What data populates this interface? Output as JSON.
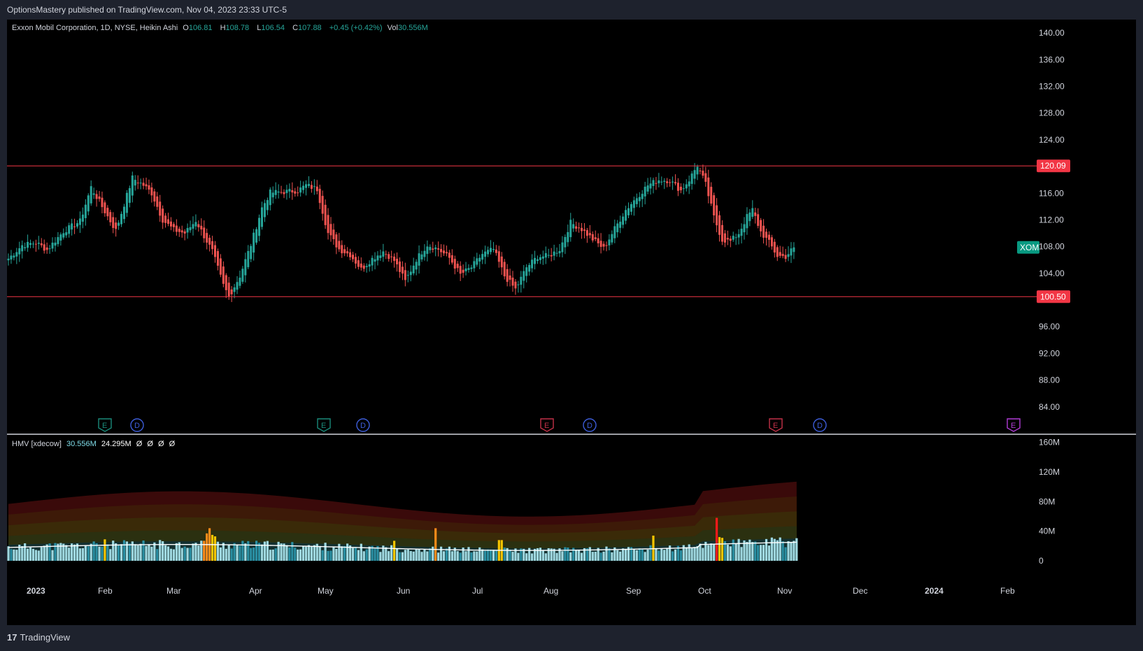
{
  "header": {
    "publisher_text": "OptionsMastery published on TradingView.com, Nov 04, 2023 23:33 UTC-5"
  },
  "legend": {
    "symbol_line": "Exxon Mobil Corporation, 1D, NYSE, Heikin Ashi",
    "o_label": "O",
    "o_value": "106.81",
    "h_label": "H",
    "h_value": "108.78",
    "l_label": "L",
    "l_value": "106.54",
    "c_label": "C",
    "c_value": "107.88",
    "change": "+0.45 (+0.42%)",
    "vol_label": "Vol",
    "vol_value": "30.556M"
  },
  "indicator": {
    "name": "HMV [xdecow]",
    "value1": "30.556M",
    "value2": "24.295M",
    "extras": [
      "Ø",
      "Ø",
      "Ø",
      "Ø"
    ]
  },
  "footer": {
    "logo_glyph": "17",
    "logo_text": "TradingView"
  },
  "colors": {
    "up": "#26a69a",
    "down": "#ef5350",
    "level_line": "#f23645",
    "symbol_badge": "#089981",
    "volume_normal": "#9fd8e0",
    "volume_dark": "#2a8fa3",
    "volume_yellow": "#f7c600",
    "volume_orange": "#ff8c1a",
    "volume_red": "#ff1a1a",
    "earnings_green": "#1a8a7a",
    "earnings_red": "#c23148",
    "earnings_purple": "#b03cd6",
    "dividend": "#3d5dd9"
  },
  "chart_data": [
    {
      "type": "candlestick",
      "title": "Exxon Mobil Corporation, 1D, NYSE, Heikin Ashi",
      "symbol": "XOM",
      "last_price": 107.88,
      "ylim": [
        80,
        142
      ],
      "y_ticks": [
        "140.00",
        "136.00",
        "132.00",
        "128.00",
        "124.00",
        "120.00",
        "116.00",
        "112.00",
        "108.00",
        "104.00",
        "100.00",
        "96.00",
        "92.00",
        "88.00",
        "84.00"
      ],
      "x_ticks": [
        "2023",
        "Feb",
        "Mar",
        "Apr",
        "May",
        "Jun",
        "Jul",
        "Aug",
        "Sep",
        "Oct",
        "Nov",
        "Dec",
        "2024",
        "Feb"
      ],
      "horizontal_levels": [
        {
          "value": 120.09,
          "label": "120.09"
        },
        {
          "value": 100.5,
          "label": "100.50"
        }
      ],
      "anchor_closes": [
        [
          0,
          106.2
        ],
        [
          5,
          108.2
        ],
        [
          10,
          108.6
        ],
        [
          14,
          107.5
        ],
        [
          20,
          110.3
        ],
        [
          26,
          111.8
        ],
        [
          30,
          116.9
        ],
        [
          36,
          112.5
        ],
        [
          39,
          110.4
        ],
        [
          45,
          118.3
        ],
        [
          49,
          117.2
        ],
        [
          52,
          116.0
        ],
        [
          56,
          112.0
        ],
        [
          60,
          110.5
        ],
        [
          64,
          110.0
        ],
        [
          68,
          111.9
        ],
        [
          72,
          108.8
        ],
        [
          74,
          107.3
        ],
        [
          78,
          102.2
        ],
        [
          80,
          100.5
        ],
        [
          84,
          103.6
        ],
        [
          88,
          108.3
        ],
        [
          92,
          113.8
        ],
        [
          95,
          116.1
        ],
        [
          100,
          116.2
        ],
        [
          105,
          116.4
        ],
        [
          108,
          117.2
        ],
        [
          112,
          116.6
        ],
        [
          116,
          110.0
        ],
        [
          120,
          107.6
        ],
        [
          124,
          106.8
        ],
        [
          128,
          104.6
        ],
        [
          132,
          106.2
        ],
        [
          136,
          107.3
        ],
        [
          140,
          105.9
        ],
        [
          144,
          102.8
        ],
        [
          148,
          106.1
        ],
        [
          152,
          108.3
        ],
        [
          156,
          107.6
        ],
        [
          160,
          106.3
        ],
        [
          164,
          103.8
        ],
        [
          168,
          104.9
        ],
        [
          172,
          106.9
        ],
        [
          176,
          107.6
        ],
        [
          180,
          103.6
        ],
        [
          184,
          101.6
        ],
        [
          188,
          104.9
        ],
        [
          192,
          106.5
        ],
        [
          196,
          106.6
        ],
        [
          200,
          107.6
        ],
        [
          204,
          111.6
        ],
        [
          208,
          110.6
        ],
        [
          212,
          109.1
        ],
        [
          216,
          107.7
        ],
        [
          220,
          110.7
        ],
        [
          224,
          113.5
        ],
        [
          228,
          115.4
        ],
        [
          232,
          117.2
        ],
        [
          236,
          118.0
        ],
        [
          240,
          117.9
        ],
        [
          244,
          116.4
        ],
        [
          247,
          118.0
        ],
        [
          250,
          120.2
        ],
        [
          253,
          117.3
        ],
        [
          256,
          112.4
        ],
        [
          259,
          109.0
        ],
        [
          262,
          108.8
        ],
        [
          265,
          110.0
        ],
        [
          268,
          112.5
        ],
        [
          270,
          113.5
        ],
        [
          273,
          110.2
        ],
        [
          276,
          108.6
        ],
        [
          279,
          106.6
        ],
        [
          282,
          106.5
        ],
        [
          285,
          107.9
        ]
      ],
      "earnings_markers": [
        {
          "letter": "E",
          "month": "Feb",
          "style": "green"
        },
        {
          "letter": "E",
          "month": "May",
          "style": "green"
        },
        {
          "letter": "E",
          "month": "Aug",
          "style": "red"
        },
        {
          "letter": "E",
          "month": "Oct",
          "style": "red"
        },
        {
          "letter": "E",
          "month": "Feb 2024",
          "style": "purple"
        }
      ],
      "dividend_markers": [
        {
          "letter": "D",
          "month": "Feb"
        },
        {
          "letter": "D",
          "month": "May"
        },
        {
          "letter": "D",
          "month": "Aug"
        },
        {
          "letter": "D",
          "month": "Nov"
        }
      ]
    },
    {
      "type": "bar",
      "title": "HMV [xdecow]",
      "ylim": [
        0,
        170
      ],
      "y_unit": "M",
      "y_ticks": [
        "160M",
        "120M",
        "80M",
        "40M",
        "0"
      ],
      "volume_millions_baseline": 18,
      "highlights": [
        {
          "bar": 35,
          "value": 29,
          "color": "yellow"
        },
        {
          "bar": 71,
          "value": 27,
          "color": "orange"
        },
        {
          "bar": 72,
          "value": 37,
          "color": "orange"
        },
        {
          "bar": 73,
          "value": 44,
          "color": "orange"
        },
        {
          "bar": 74,
          "value": 35,
          "color": "yellow"
        },
        {
          "bar": 75,
          "value": 33,
          "color": "yellow"
        },
        {
          "bar": 140,
          "value": 27,
          "color": "yellow"
        },
        {
          "bar": 155,
          "value": 44,
          "color": "orange"
        },
        {
          "bar": 178,
          "value": 28,
          "color": "yellow"
        },
        {
          "bar": 179,
          "value": 28,
          "color": "yellow"
        },
        {
          "bar": 234,
          "value": 34,
          "color": "yellow"
        },
        {
          "bar": 257,
          "value": 58,
          "color": "red"
        },
        {
          "bar": 258,
          "value": 32,
          "color": "yellow"
        },
        {
          "bar": 259,
          "value": 31,
          "color": "yellow"
        }
      ],
      "last_value": "30.556M",
      "average_value": "24.295M"
    }
  ]
}
